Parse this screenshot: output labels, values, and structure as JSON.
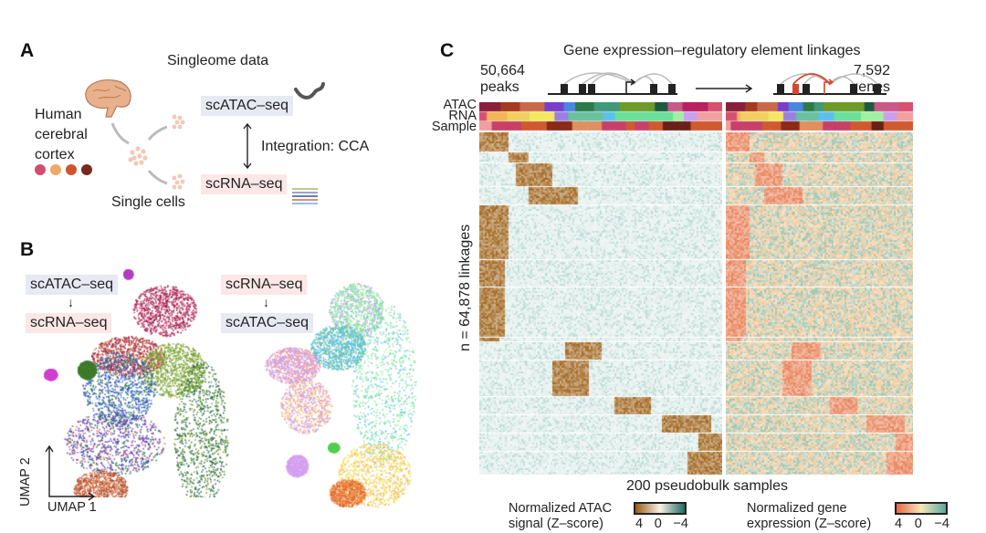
{
  "panel_a": {
    "label": "A",
    "title": "Singleome data",
    "tissue": [
      "Human",
      "cerebral",
      "cortex"
    ],
    "sample_dot_colors": [
      "#cf4e6e",
      "#f0a868",
      "#d0552e",
      "#7a2a1c"
    ],
    "single_cells": "Single cells",
    "atac": "scATAC–seq",
    "rna": "scRNA–seq",
    "integration": "Integration: CCA"
  },
  "panel_b": {
    "label": "B",
    "left": {
      "from": "scATAC–seq",
      "to": "scRNA–seq"
    },
    "right": {
      "from": "scRNA–seq",
      "to": "scATAC–seq"
    },
    "axis_x": "UMAP 1",
    "axis_y": "UMAP 2"
  },
  "panel_c": {
    "label": "C",
    "title": "Gene expression–regulatory element linkages",
    "peaks_count": "50,664",
    "peaks_unit": "peaks",
    "genes_count": "7,592",
    "genes_unit": "genes",
    "row_labels": [
      "ATAC",
      "RNA",
      "Sample"
    ],
    "y_label": "n = 64,878 linkages",
    "x_label": "200 pseudobulk samples",
    "legend_atac": {
      "title": [
        "Normalized ATAC",
        "signal (Z–score)"
      ],
      "ticks": [
        "4",
        "0",
        "−4"
      ],
      "colors": [
        "#9a5a14",
        "#f7f1e6",
        "#1f6a62"
      ]
    },
    "legend_rna": {
      "title": [
        "Normalized gene",
        "expression (Z–score)"
      ],
      "ticks": [
        "4",
        "0",
        "−4"
      ],
      "colors": [
        "#e66a45",
        "#f8e6b8",
        "#5aa7a0"
      ]
    },
    "highlight_color": "#d9452c"
  }
}
